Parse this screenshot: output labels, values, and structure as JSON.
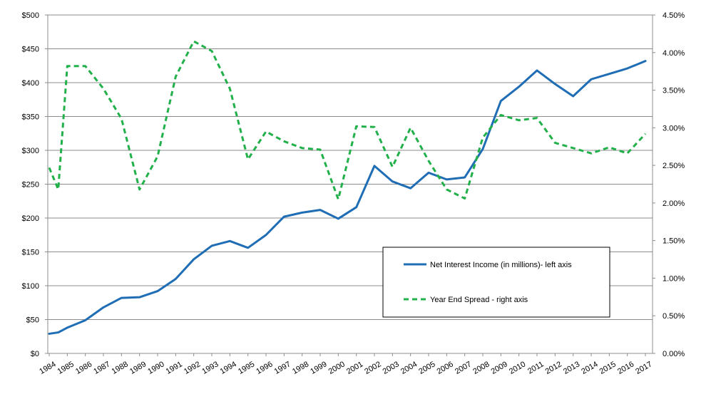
{
  "chart_data": {
    "type": "line",
    "title": "",
    "xlabel": "",
    "ylabel": "",
    "y2label": "",
    "grid": true,
    "legend_position": "bottom-right, inside plot",
    "x": [
      "1984",
      "1985",
      "1986",
      "1987",
      "1988",
      "1989",
      "1990",
      "1991",
      "1992",
      "1993",
      "1994",
      "1995",
      "1996",
      "1997",
      "1998",
      "1999",
      "2000",
      "2001",
      "2002",
      "2003",
      "2004",
      "2005",
      "2006",
      "2007",
      "2008",
      "2009",
      "2010",
      "2011",
      "2012",
      "2013",
      "2014",
      "2015",
      "2016",
      "2017"
    ],
    "y_left": {
      "ticks": [
        "$0",
        "$50",
        "$100",
        "$150",
        "$200",
        "$250",
        "$300",
        "$350",
        "$400",
        "$450",
        "$500"
      ],
      "min": 0,
      "max": 500
    },
    "y_right": {
      "ticks": [
        "0.00%",
        "0.50%",
        "1.00%",
        "1.50%",
        "2.00%",
        "2.50%",
        "3.00%",
        "3.50%",
        "4.00%",
        "4.50%"
      ],
      "min": 0,
      "max": 4.5
    },
    "series": [
      {
        "name": "Net Interest Income (in millions)- left axis",
        "axis": "left",
        "style": "solid",
        "color": "#1f6db4",
        "x": [
          1984,
          1984.5,
          1985,
          1986,
          1987,
          1988,
          1989,
          1990,
          1991,
          1992,
          1993,
          1994,
          1995,
          1996,
          1997,
          1998,
          1999,
          2000,
          2001,
          2002,
          2003,
          2004,
          2005,
          2006,
          2007,
          2008,
          2009,
          2010,
          2011,
          2012,
          2013,
          2014,
          2015,
          2016,
          2017
        ],
        "values": [
          29,
          31,
          38,
          49,
          68,
          82,
          83,
          92,
          110,
          139,
          159,
          166,
          156,
          175,
          202,
          208,
          212,
          199,
          216,
          277,
          254,
          244,
          267,
          257,
          260,
          302,
          373,
          394,
          418,
          398,
          380,
          405,
          413,
          421,
          432
        ]
      },
      {
        "name": "Year End Spread - right axis",
        "axis": "right",
        "style": "dashed",
        "color": "#22b04b",
        "x": [
          1984,
          1984.5,
          1985,
          1986,
          1987,
          1988,
          1989,
          1990,
          1991,
          1992,
          1993,
          1994,
          1995,
          1996,
          1997,
          1998,
          1999,
          2000,
          2001,
          2002,
          2003,
          2004,
          2005,
          2006,
          2007,
          2008,
          2009,
          2010,
          2011,
          2012,
          2013,
          2014,
          2015,
          2016,
          2017
        ],
        "values": [
          2.47,
          2.18,
          3.82,
          3.82,
          3.52,
          3.12,
          2.18,
          2.62,
          3.68,
          4.15,
          4.02,
          3.52,
          2.58,
          2.95,
          2.82,
          2.73,
          2.71,
          2.05,
          3.02,
          3.01,
          2.48,
          3.0,
          2.56,
          2.18,
          2.06,
          2.87,
          3.17,
          3.1,
          3.13,
          2.8,
          2.73,
          2.66,
          2.74,
          2.66,
          2.92
        ]
      }
    ]
  }
}
